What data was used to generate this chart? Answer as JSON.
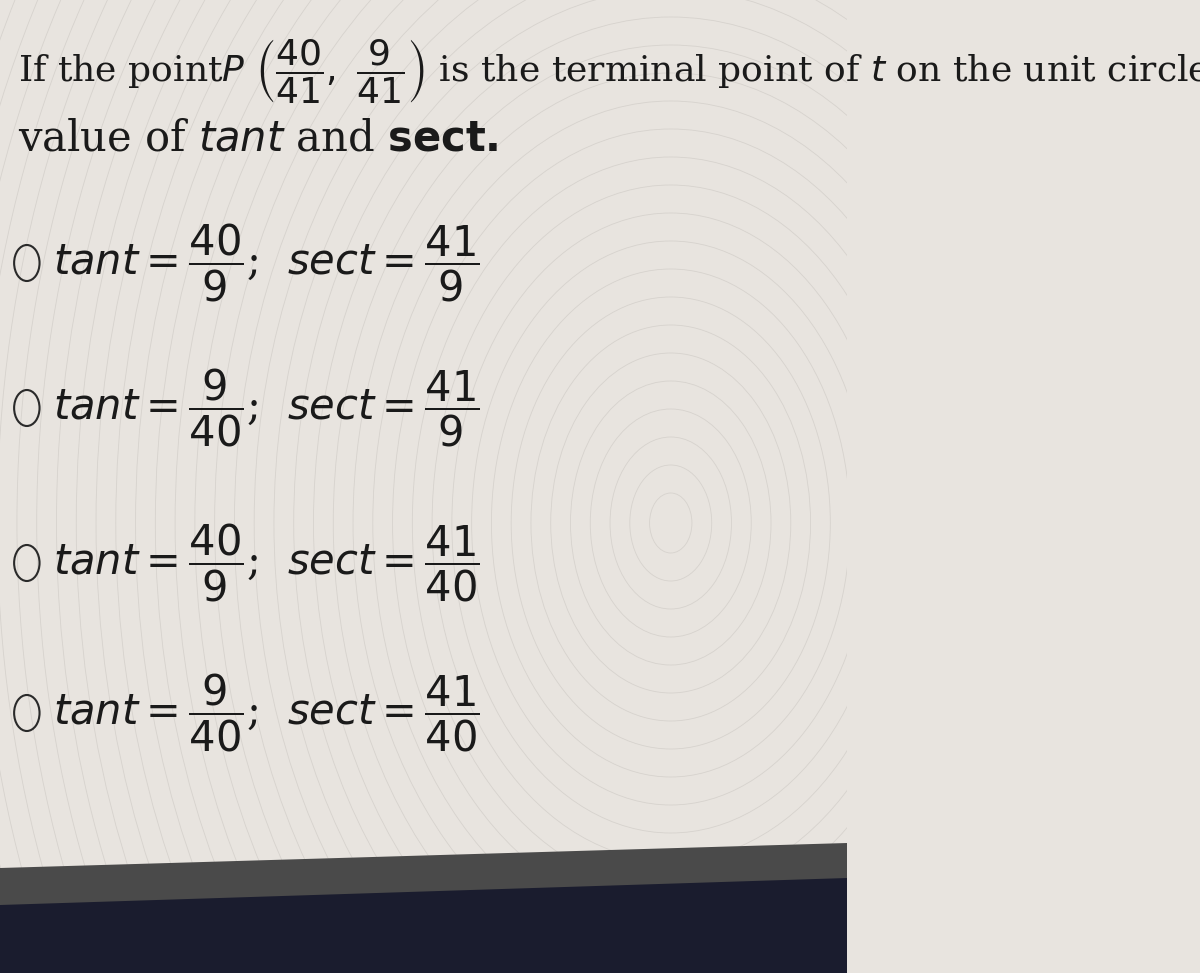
{
  "bg_color": "#e8e4df",
  "circle_color": "#d0ccc8",
  "bottom_bar_color": "#1a1a2e",
  "title_fontsize": 26,
  "option_fontsize": 30,
  "figsize": [
    12.0,
    9.73
  ],
  "dpi": 100,
  "options": [
    {
      "tant_num": "40",
      "tant_den": "9",
      "sect_num": "41",
      "sect_den": "9"
    },
    {
      "tant_num": "9",
      "tant_den": "40",
      "sect_num": "41",
      "sect_den": "9"
    },
    {
      "tant_num": "40",
      "tant_den": "9",
      "sect_num": "41",
      "sect_den": "40"
    },
    {
      "tant_num": "9",
      "tant_den": "40",
      "sect_num": "41",
      "sect_den": "40"
    }
  ]
}
